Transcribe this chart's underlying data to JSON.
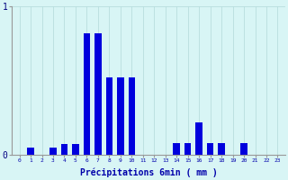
{
  "xlabel": "Précipitations 6min ( mm )",
  "hours": [
    0,
    1,
    2,
    3,
    4,
    5,
    6,
    7,
    8,
    9,
    10,
    11,
    12,
    13,
    14,
    15,
    16,
    17,
    18,
    19,
    20,
    21,
    22,
    23
  ],
  "values": [
    0.0,
    0.05,
    0.0,
    0.05,
    0.07,
    0.07,
    0.82,
    0.82,
    0.52,
    0.52,
    0.52,
    0.0,
    0.0,
    0.0,
    0.08,
    0.08,
    0.22,
    0.08,
    0.08,
    0.0,
    0.08,
    0.0,
    0.0,
    0.0
  ],
  "ylim": [
    0,
    1.0
  ],
  "bar_color": "#0000dd",
  "bg_color": "#d8f5f5",
  "grid_color": "#b8dede",
  "ytick_vals": [
    0,
    1
  ],
  "ytick_labels": [
    "0",
    "1"
  ],
  "bar_width": 0.6
}
